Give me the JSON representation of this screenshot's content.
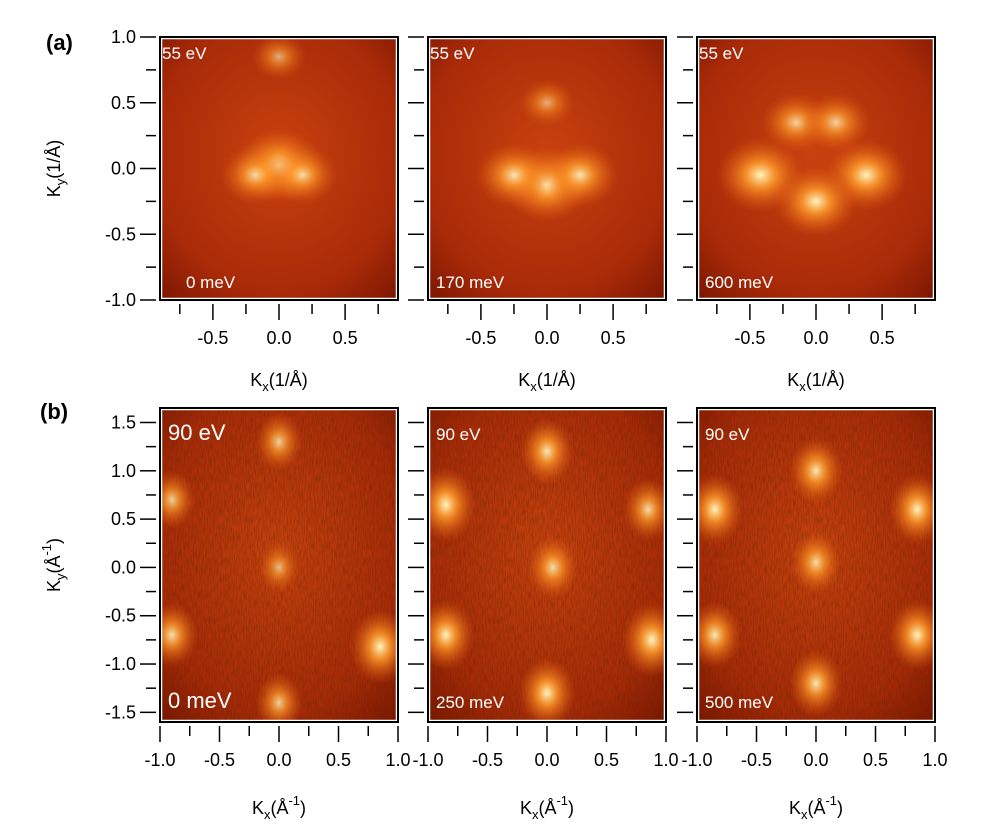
{
  "panel_tags": [
    "(a)",
    "(b)"
  ],
  "colors": {
    "background": "#a82a08",
    "spot": "#fff6c0",
    "dark": "#2a0500"
  },
  "chart_data": [
    {
      "type": "heatmap",
      "row": "a",
      "title": "",
      "photon_energy": "55 eV",
      "binding_energy": "0 meV",
      "xlabel": {
        "main": "K",
        "sub": "x",
        "rest": "(1/Å)"
      },
      "ylabel": {
        "main": "K",
        "sub": "y",
        "rest": "(1/Å)"
      },
      "xlim": [
        -0.9,
        0.9
      ],
      "ylim": [
        -1.0,
        1.0
      ],
      "xticks": [
        "-0.5",
        "0.0",
        "0.5"
      ],
      "yticks": [
        "1.0",
        "0.5",
        "0.0",
        "-0.5",
        "-1.0"
      ],
      "bright_features": [
        {
          "kx": 0.0,
          "ky": 0.02,
          "intensity": 1.0
        },
        {
          "kx": -0.18,
          "ky": -0.05,
          "intensity": 0.6
        },
        {
          "kx": 0.18,
          "ky": -0.05,
          "intensity": 0.6
        },
        {
          "kx": 0.0,
          "ky": 0.85,
          "intensity": 0.3
        }
      ]
    },
    {
      "type": "heatmap",
      "row": "a",
      "title": "",
      "photon_energy": "55 eV",
      "binding_energy": "170 meV",
      "xlabel": {
        "main": "K",
        "sub": "x",
        "rest": "(1/Å)"
      },
      "xlim": [
        -0.9,
        0.9
      ],
      "ylim": [
        -1.0,
        1.0
      ],
      "xticks": [
        "-0.5",
        "0.0",
        "0.5"
      ],
      "bright_features": [
        {
          "kx": 0.0,
          "ky": -0.12,
          "intensity": 1.0
        },
        {
          "kx": -0.25,
          "ky": -0.05,
          "intensity": 0.75
        },
        {
          "kx": 0.25,
          "ky": -0.05,
          "intensity": 0.75
        },
        {
          "kx": 0.0,
          "ky": 0.5,
          "intensity": 0.3
        }
      ]
    },
    {
      "type": "heatmap",
      "row": "a",
      "title": "",
      "photon_energy": "55 eV",
      "binding_energy": "600 meV",
      "xlabel": {
        "main": "K",
        "sub": "x",
        "rest": "(1/Å)"
      },
      "xlim": [
        -0.9,
        0.9
      ],
      "ylim": [
        -1.0,
        1.0
      ],
      "xticks": [
        "-0.5",
        "0.0",
        "0.5"
      ],
      "bright_features": [
        {
          "kx": -0.42,
          "ky": -0.05,
          "intensity": 1.0
        },
        {
          "kx": 0.38,
          "ky": -0.05,
          "intensity": 0.9
        },
        {
          "kx": 0.0,
          "ky": -0.25,
          "intensity": 0.9
        },
        {
          "kx": -0.15,
          "ky": 0.35,
          "intensity": 0.6
        },
        {
          "kx": 0.15,
          "ky": 0.35,
          "intensity": 0.6
        }
      ]
    },
    {
      "type": "heatmap",
      "row": "b",
      "title": "",
      "photon_energy": "90 eV",
      "binding_energy": "0 meV",
      "xlabel": {
        "main": "K",
        "sub": "x",
        "rest": "(Å",
        "sup": "-1",
        "close": ")"
      },
      "ylabel": {
        "main": "K",
        "sub": "y",
        "rest": "(Å",
        "sup": "-1",
        "close": ")"
      },
      "xlim": [
        -1.0,
        1.0
      ],
      "ylim": [
        -1.6,
        1.65
      ],
      "xticks": [
        "-1.0",
        "-0.5",
        "0.0",
        "0.5",
        "1.0"
      ],
      "yticks": [
        "1.5",
        "1.0",
        "0.5",
        "0.0",
        "-0.5",
        "-1.0",
        "-1.5"
      ],
      "bright_features": [
        {
          "kx": -0.9,
          "ky": 0.7,
          "intensity": 0.6
        },
        {
          "kx": -0.9,
          "ky": -0.7,
          "intensity": 0.75
        },
        {
          "kx": 0.0,
          "ky": 1.3,
          "intensity": 0.6
        },
        {
          "kx": 0.0,
          "ky": 0.0,
          "intensity": 0.4
        },
        {
          "kx": 0.0,
          "ky": -1.4,
          "intensity": 0.6
        },
        {
          "kx": 0.85,
          "ky": -0.82,
          "intensity": 1.0
        }
      ]
    },
    {
      "type": "heatmap",
      "row": "b",
      "title": "",
      "photon_energy": "90 eV",
      "binding_energy": "250 meV",
      "xlabel": {
        "main": "K",
        "sub": "x",
        "rest": "(Å",
        "sup": "-1",
        "close": ")"
      },
      "xlim": [
        -1.0,
        1.0
      ],
      "ylim": [
        -1.6,
        1.65
      ],
      "xticks": [
        "-1.0",
        "-0.5",
        "0.0",
        "0.5",
        "1.0"
      ],
      "bright_features": [
        {
          "kx": -0.85,
          "ky": 0.65,
          "intensity": 1.0
        },
        {
          "kx": 0.85,
          "ky": 0.6,
          "intensity": 0.7
        },
        {
          "kx": 0.0,
          "ky": 1.2,
          "intensity": 0.8
        },
        {
          "kx": 0.05,
          "ky": 0.0,
          "intensity": 0.7
        },
        {
          "kx": -0.85,
          "ky": -0.7,
          "intensity": 0.9
        },
        {
          "kx": 0.88,
          "ky": -0.75,
          "intensity": 1.0
        },
        {
          "kx": 0.0,
          "ky": -1.3,
          "intensity": 0.9
        }
      ]
    },
    {
      "type": "heatmap",
      "row": "b",
      "title": "",
      "photon_energy": "90 eV",
      "binding_energy": "500 meV",
      "xlabel": {
        "main": "K",
        "sub": "x",
        "rest": "(Å",
        "sup": "-1",
        "close": ")"
      },
      "xlim": [
        -1.0,
        1.0
      ],
      "ylim": [
        -1.6,
        1.65
      ],
      "xticks": [
        "-1.0",
        "-0.5",
        "0.0",
        "0.5",
        "1.0"
      ],
      "bright_features": [
        {
          "kx": -0.85,
          "ky": 0.6,
          "intensity": 0.9
        },
        {
          "kx": 0.85,
          "ky": 0.6,
          "intensity": 0.9
        },
        {
          "kx": 0.0,
          "ky": 1.0,
          "intensity": 0.8
        },
        {
          "kx": 0.0,
          "ky": 0.05,
          "intensity": 0.7
        },
        {
          "kx": -0.85,
          "ky": -0.7,
          "intensity": 0.8
        },
        {
          "kx": 0.85,
          "ky": -0.7,
          "intensity": 0.9
        },
        {
          "kx": 0.0,
          "ky": -1.2,
          "intensity": 0.8
        }
      ]
    }
  ]
}
